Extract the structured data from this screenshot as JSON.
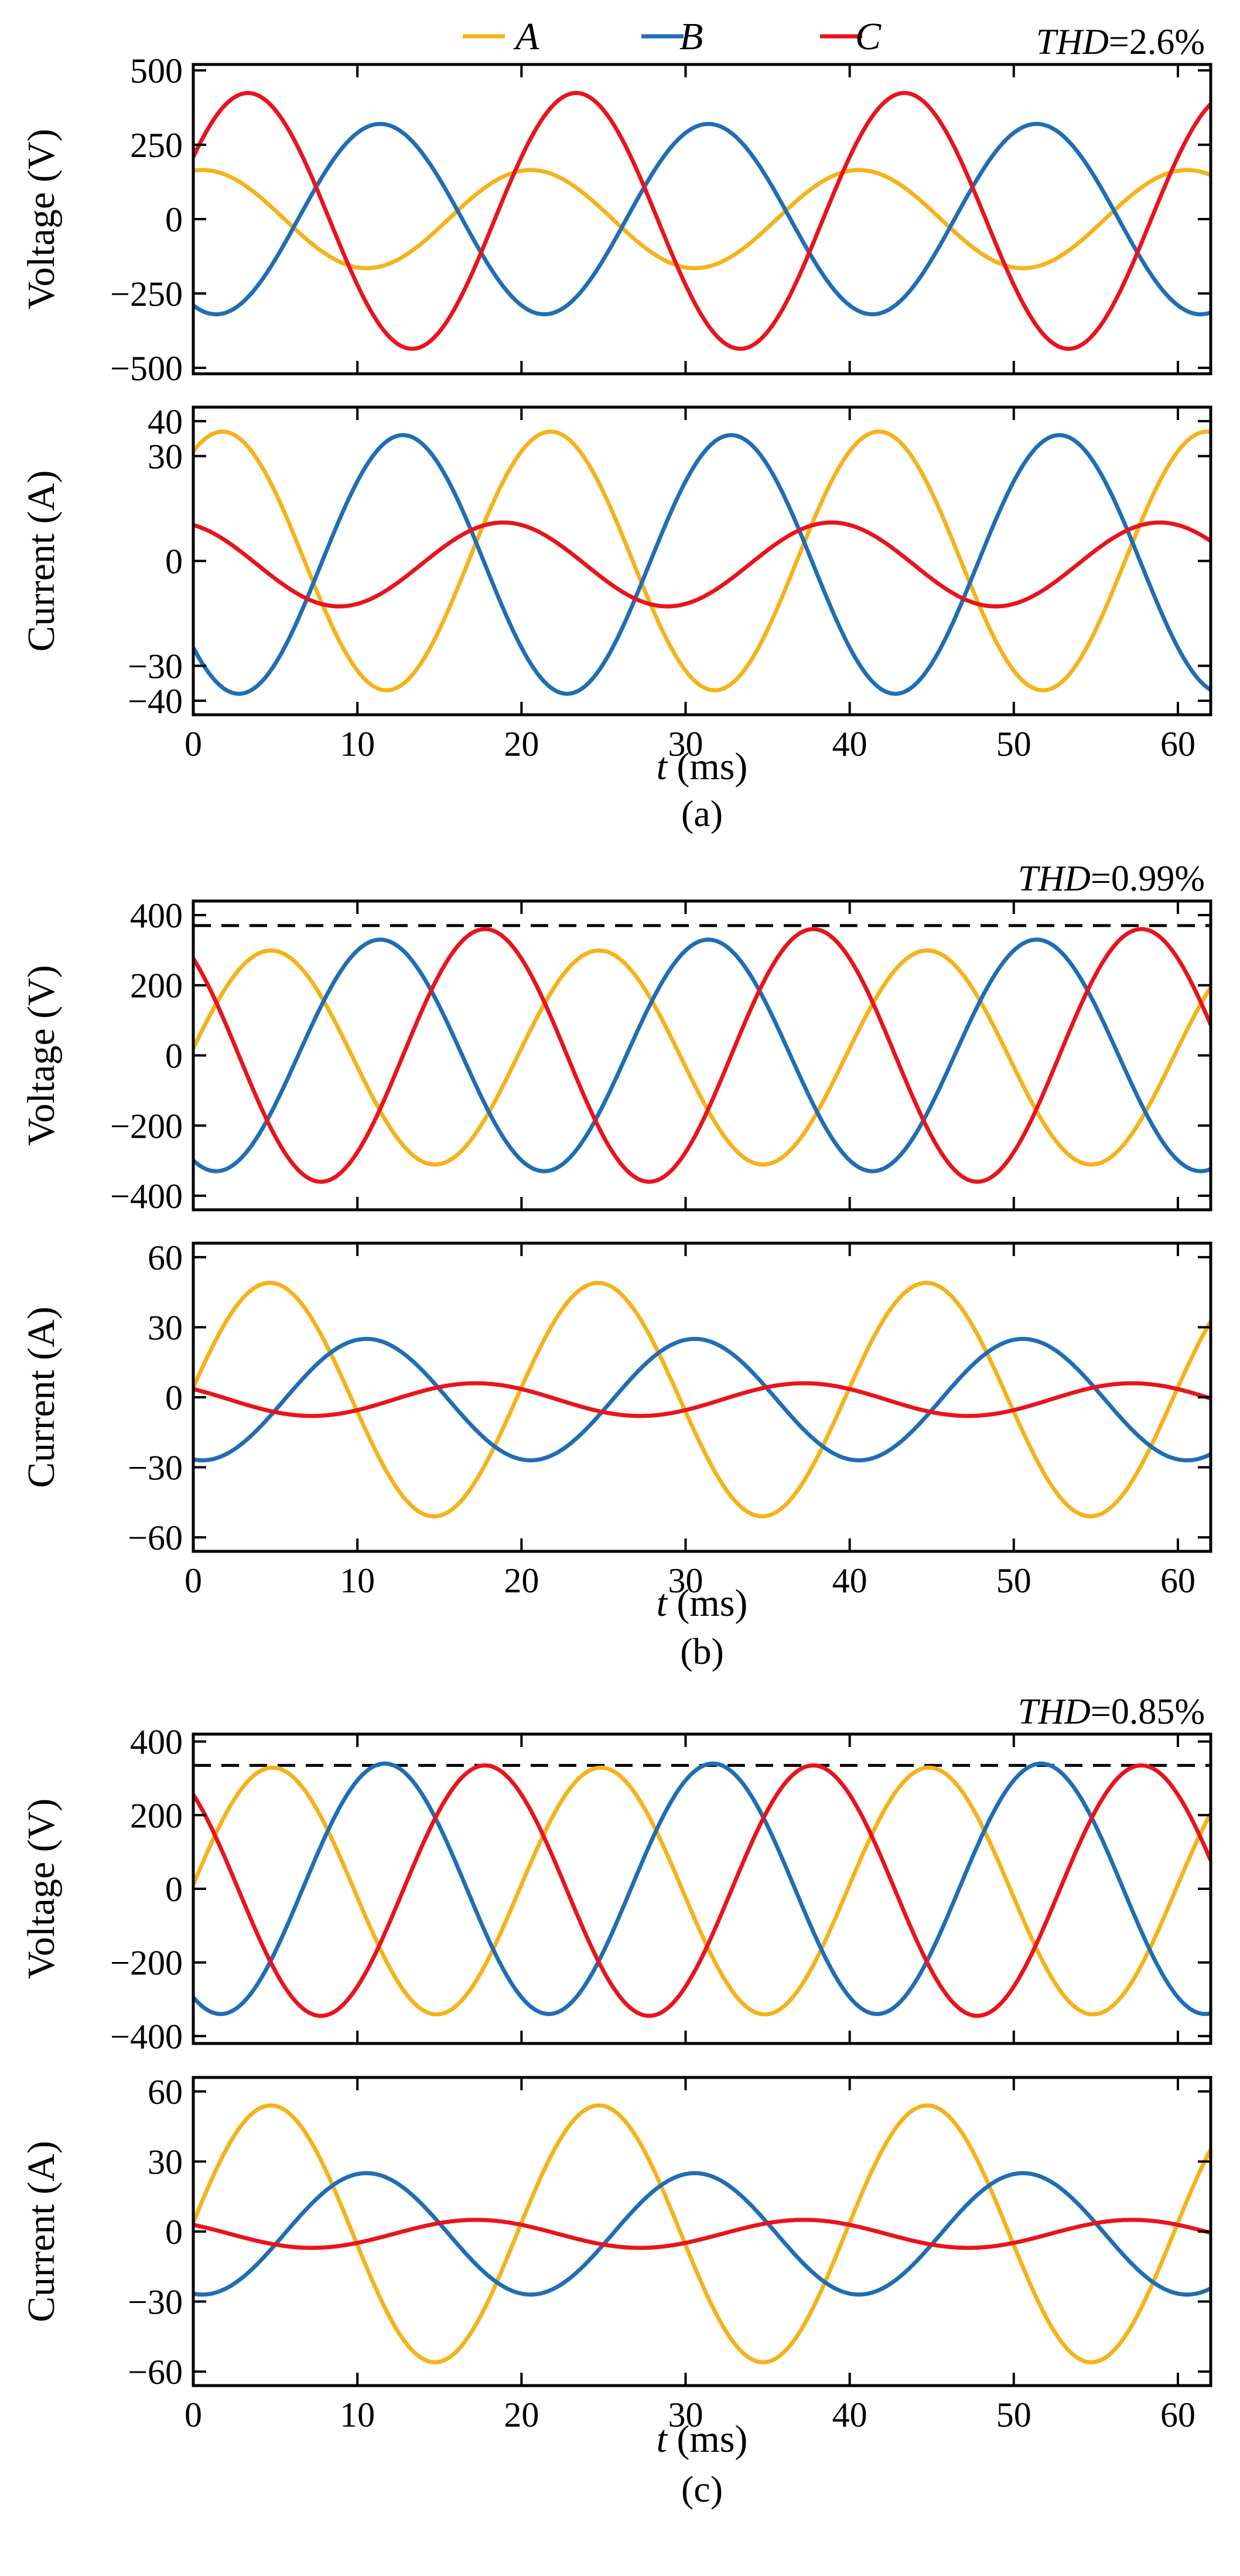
{
  "legend": {
    "items": [
      {
        "label": "A",
        "color": "#f5b21a"
      },
      {
        "label": "B",
        "color": "#1f6eb4"
      },
      {
        "label": "C",
        "color": "#e8141c"
      }
    ]
  },
  "x_axis": {
    "label_italic": "t",
    "label_rest": " (ms)",
    "ticks": [
      "0",
      "10",
      "20",
      "30",
      "40",
      "50",
      "60"
    ]
  },
  "chart_data": [
    {
      "type": "line",
      "group": "a",
      "caption": "(a)",
      "title": "Voltage (V)",
      "xlim": [
        0,
        62
      ],
      "ylim": [
        -520,
        520
      ],
      "yticks": [
        500,
        250,
        0,
        -250,
        -500
      ],
      "ytick_labels": [
        "500",
        "250",
        "0",
        "−250",
        "−500"
      ],
      "annotation": {
        "prefix": "THD",
        "value": "=2.6%"
      },
      "series": [
        {
          "name": "A",
          "amp": 165,
          "phase_deg": 80,
          "bias": 0
        },
        {
          "name": "B",
          "amp": 320,
          "phase_deg": -115,
          "bias": 0
        },
        {
          "name": "C",
          "amp": 430,
          "phase_deg": 30,
          "bias": -6
        }
      ]
    },
    {
      "type": "line",
      "group": "a",
      "title": "Current (A)",
      "xlim": [
        0,
        62
      ],
      "ylim": [
        -44,
        44
      ],
      "yticks": [
        40,
        30,
        0,
        -30,
        -40
      ],
      "ytick_labels": [
        "40",
        "30",
        "0",
        "−30",
        "−40"
      ],
      "series": [
        {
          "name": "A",
          "amp": 37,
          "phase_deg": 58,
          "bias": 0
        },
        {
          "name": "B",
          "amp": 37,
          "phase_deg": -140,
          "bias": -1
        },
        {
          "name": "C",
          "amp": 12,
          "phase_deg": 110,
          "bias": -1
        }
      ]
    },
    {
      "type": "line",
      "group": "b",
      "caption": "(b)",
      "title": "Voltage (V)",
      "xlim": [
        0,
        62
      ],
      "ylim": [
        -440,
        440
      ],
      "yticks": [
        400,
        200,
        0,
        -200,
        -400
      ],
      "ytick_labels": [
        "400",
        "200",
        "0",
        "−200",
        "−400"
      ],
      "annotation": {
        "prefix": "THD",
        "value": "=0.99%"
      },
      "ref_line": 370,
      "series": [
        {
          "name": "A",
          "amp": 305,
          "phase_deg": 5,
          "bias": -6
        },
        {
          "name": "B",
          "amp": 330,
          "phase_deg": -115,
          "bias": 0
        },
        {
          "name": "C",
          "amp": 360,
          "phase_deg": 130,
          "bias": 0
        }
      ]
    },
    {
      "type": "line",
      "group": "b",
      "title": "Current (A)",
      "xlim": [
        0,
        62
      ],
      "ylim": [
        -66,
        66
      ],
      "yticks": [
        60,
        30,
        0,
        -30,
        -60
      ],
      "ytick_labels": [
        "60",
        "30",
        "0",
        "−30",
        "−60"
      ],
      "series": [
        {
          "name": "A",
          "amp": 50,
          "phase_deg": 6,
          "bias": -1
        },
        {
          "name": "B",
          "amp": 26,
          "phase_deg": -100,
          "bias": -1
        },
        {
          "name": "C",
          "amp": 7,
          "phase_deg": 140,
          "bias": -1
        }
      ]
    },
    {
      "type": "line",
      "group": "c",
      "caption": "(c)",
      "title": "Voltage (V)",
      "xlim": [
        0,
        62
      ],
      "ylim": [
        -420,
        420
      ],
      "yticks": [
        400,
        200,
        0,
        -200,
        -400
      ],
      "ytick_labels": [
        "400",
        "200",
        "0",
        "−200",
        "−400"
      ],
      "annotation": {
        "prefix": "THD",
        "value": "=0.85%"
      },
      "ref_line": 335,
      "series": [
        {
          "name": "A",
          "amp": 335,
          "phase_deg": 3,
          "bias": -6
        },
        {
          "name": "B",
          "amp": 340,
          "phase_deg": -120,
          "bias": 0
        },
        {
          "name": "C",
          "amp": 340,
          "phase_deg": 130,
          "bias": -5
        }
      ]
    },
    {
      "type": "line",
      "group": "c",
      "title": "Current (A)",
      "xlim": [
        0,
        62
      ],
      "ylim": [
        -66,
        66
      ],
      "yticks": [
        60,
        30,
        0,
        -30,
        -60
      ],
      "ytick_labels": [
        "60",
        "30",
        "0",
        "−30",
        "−60"
      ],
      "series": [
        {
          "name": "A",
          "amp": 55,
          "phase_deg": 5,
          "bias": -1
        },
        {
          "name": "B",
          "amp": 26,
          "phase_deg": -100,
          "bias": -1
        },
        {
          "name": "C",
          "amp": 6,
          "phase_deg": 140,
          "bias": -1
        }
      ]
    }
  ]
}
